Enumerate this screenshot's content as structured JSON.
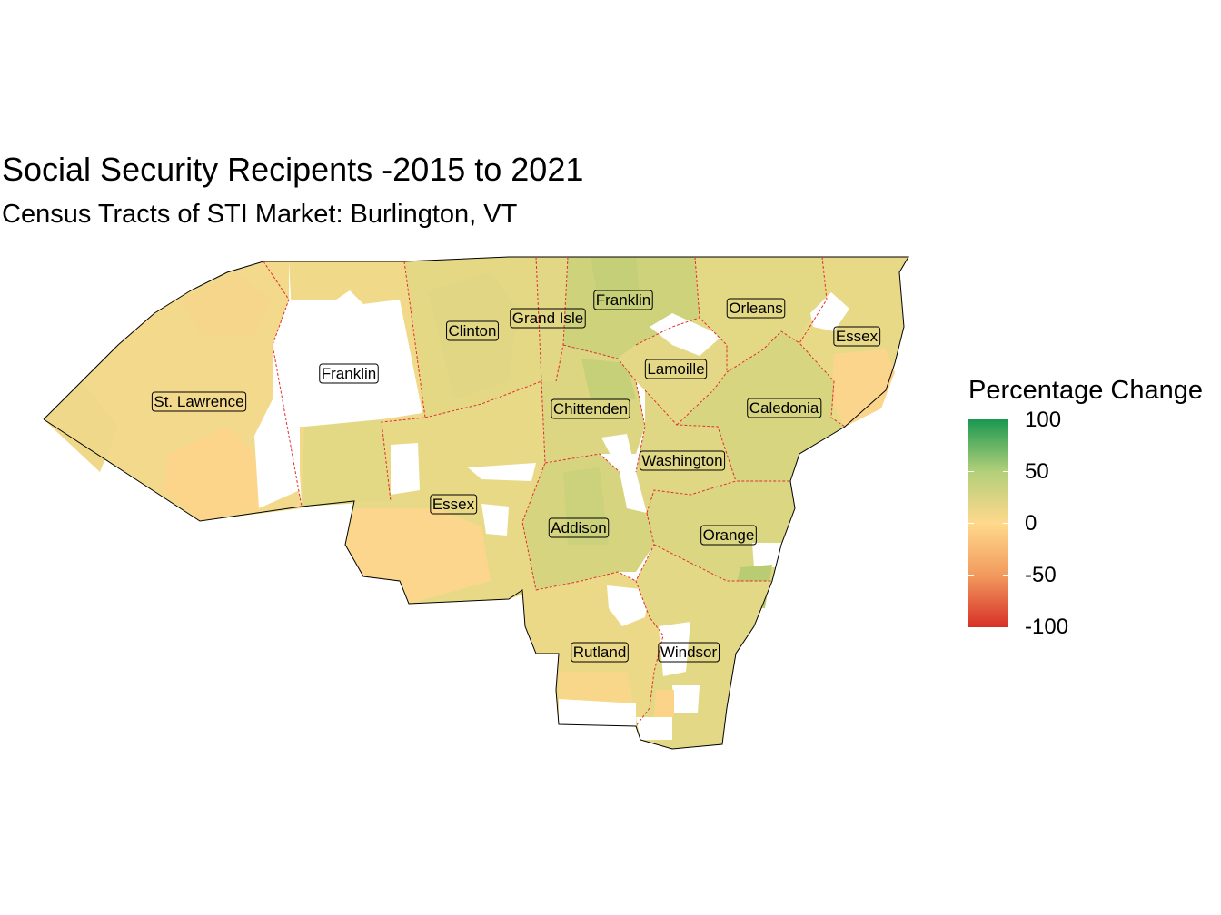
{
  "title": "Social Security Recipents -2015 to 2021",
  "subtitle": "Census Tracts of STI Market: Burlington, VT",
  "legend": {
    "title": "Percentage Change",
    "ticks": [
      "100",
      "50",
      "0",
      "-50",
      "-100"
    ],
    "colors": [
      "#1a9850",
      "#b2cf7a",
      "#ffd98c",
      "#f29a5e",
      "#d73027"
    ]
  },
  "counties": [
    {
      "name": "St. Lawrence"
    },
    {
      "name": "Franklin"
    },
    {
      "name": "Clinton"
    },
    {
      "name": "Grand Isle"
    },
    {
      "name": "Franklin"
    },
    {
      "name": "Orleans"
    },
    {
      "name": "Essex"
    },
    {
      "name": "Lamoille"
    },
    {
      "name": "Chittenden"
    },
    {
      "name": "Caledonia"
    },
    {
      "name": "Washington"
    },
    {
      "name": "Essex"
    },
    {
      "name": "Addison"
    },
    {
      "name": "Orange"
    },
    {
      "name": "Rutland"
    },
    {
      "name": "Windsor"
    }
  ]
}
